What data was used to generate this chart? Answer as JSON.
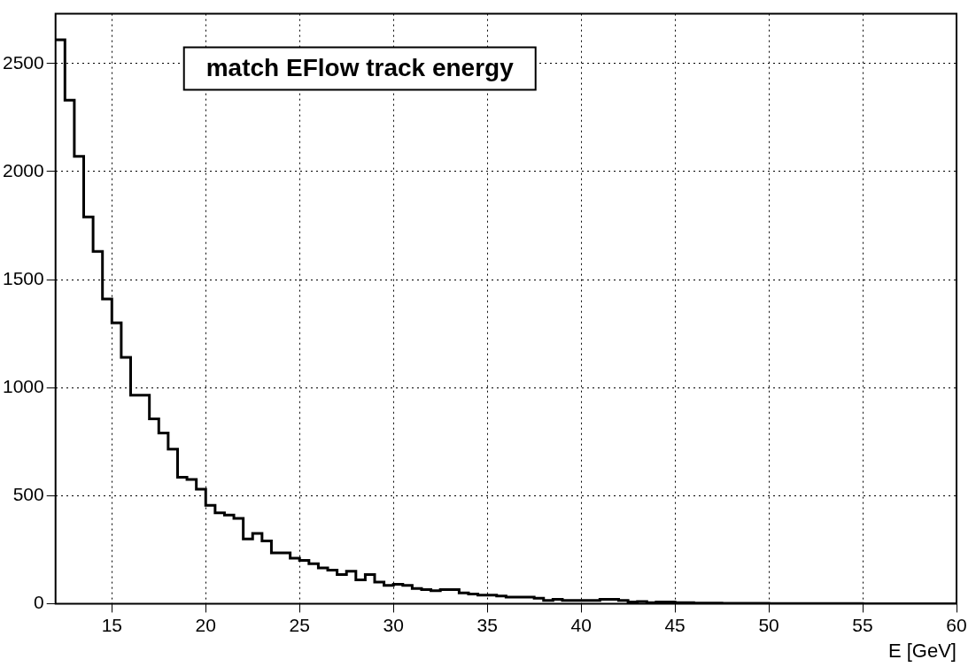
{
  "chart_data": {
    "type": "histogram",
    "title": "match EFlow track energy",
    "xlabel": "E [GeV]",
    "bins": [
      12,
      12.5,
      13,
      13.5,
      14,
      14.5,
      15,
      15.5,
      16,
      16.5,
      17,
      17.5,
      18,
      18.5,
      19,
      19.5,
      20,
      20.5,
      21,
      21.5,
      22,
      22.5,
      23,
      23.5,
      24,
      24.5,
      25,
      25.5,
      26,
      26.5,
      27,
      27.5,
      28,
      28.5,
      29,
      29.5,
      30,
      30.5,
      31,
      31.5,
      32,
      32.5,
      33,
      33.5,
      34,
      34.5,
      35,
      35.5,
      36,
      36.5,
      37,
      37.5,
      38,
      38.5,
      39,
      39.5,
      40,
      40.5,
      41,
      41.5,
      42,
      42.5,
      43,
      43.5,
      44,
      44.5,
      45,
      45.5,
      46,
      46.5,
      47,
      47.5,
      48,
      48.5,
      49,
      49.5,
      50,
      50.5,
      51,
      51.5,
      52,
      52.5,
      53,
      53.5,
      54,
      54.5,
      55,
      55.5,
      56,
      56.5,
      57,
      57.5,
      58,
      58.5,
      59,
      59.5,
      60
    ],
    "values": [
      2610,
      2330,
      2070,
      1790,
      1630,
      1410,
      1300,
      1140,
      965,
      965,
      855,
      790,
      715,
      585,
      575,
      530,
      455,
      420,
      410,
      395,
      300,
      325,
      290,
      235,
      235,
      210,
      200,
      185,
      165,
      155,
      135,
      150,
      110,
      135,
      100,
      85,
      90,
      85,
      70,
      65,
      60,
      65,
      65,
      50,
      45,
      40,
      40,
      35,
      30,
      30,
      30,
      25,
      15,
      20,
      15,
      15,
      15,
      15,
      20,
      20,
      15,
      8,
      10,
      5,
      8,
      8,
      5,
      5,
      3,
      3,
      3,
      2,
      2,
      2,
      2,
      2,
      1,
      1,
      1,
      1,
      1,
      1,
      1,
      1,
      1,
      1,
      0,
      0,
      0,
      0,
      0,
      0,
      0,
      0,
      0,
      0
    ],
    "color": "#000000",
    "xlim": [
      12,
      60
    ],
    "xticks": [
      15,
      20,
      25,
      30,
      35,
      40,
      45,
      50,
      55,
      60
    ],
    "ylim": [
      0,
      2730
    ],
    "yticks": [
      0,
      500,
      1000,
      1500,
      2000,
      2500
    ],
    "grid": true
  }
}
